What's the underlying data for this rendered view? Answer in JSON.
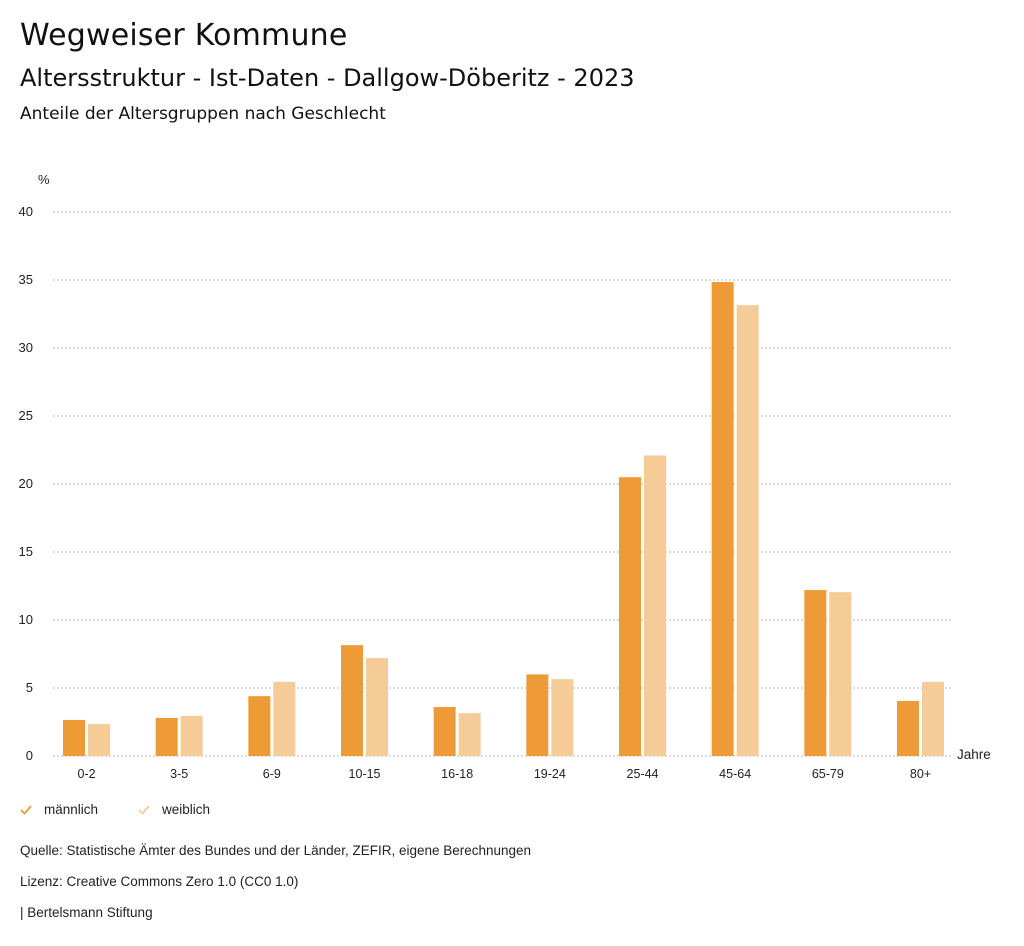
{
  "header": {
    "title": "Wegweiser Kommune",
    "subtitle": "Altersstruktur - Ist-Daten - Dallgow-Döberitz - 2023",
    "description": "Anteile der Altersgruppen nach Geschlecht"
  },
  "chart_data": {
    "type": "bar",
    "title": "Anteile der Altersgruppen nach Geschlecht",
    "ylabel": "%",
    "xlabel": "Jahre",
    "ylim": [
      0,
      40
    ],
    "yticks": [
      0,
      5,
      10,
      15,
      20,
      25,
      30,
      35,
      40
    ],
    "grid": true,
    "legend_position": "bottom-left",
    "categories": [
      "0-2",
      "3-5",
      "6-9",
      "10-15",
      "16-18",
      "19-24",
      "25-44",
      "45-64",
      "65-79",
      "80+"
    ],
    "series": [
      {
        "name": "männlich",
        "color": "#EE9A36",
        "values": [
          2.65,
          2.8,
          4.4,
          8.15,
          3.6,
          6.0,
          20.5,
          34.85,
          12.2,
          4.05
        ]
      },
      {
        "name": "weiblich",
        "color": "#F5CB98",
        "values": [
          2.35,
          2.95,
          5.45,
          7.2,
          3.15,
          5.65,
          22.1,
          33.15,
          12.05,
          5.45
        ]
      }
    ]
  },
  "legend": {
    "items": [
      {
        "label": "männlich",
        "icon": "check-icon",
        "color": "#EE9A36"
      },
      {
        "label": "weiblich",
        "icon": "check-icon",
        "color": "#F5CB98"
      }
    ]
  },
  "footer": {
    "source": "Quelle: Statistische Ämter des Bundes und der Länder, ZEFIR, eigene Berechnungen",
    "license": "Lizenz: Creative Commons Zero 1.0 (CC0 1.0)",
    "publisher": "| Bertelsmann Stiftung"
  },
  "colors": {
    "grid": "#b8b8b8",
    "text": "#222222"
  }
}
